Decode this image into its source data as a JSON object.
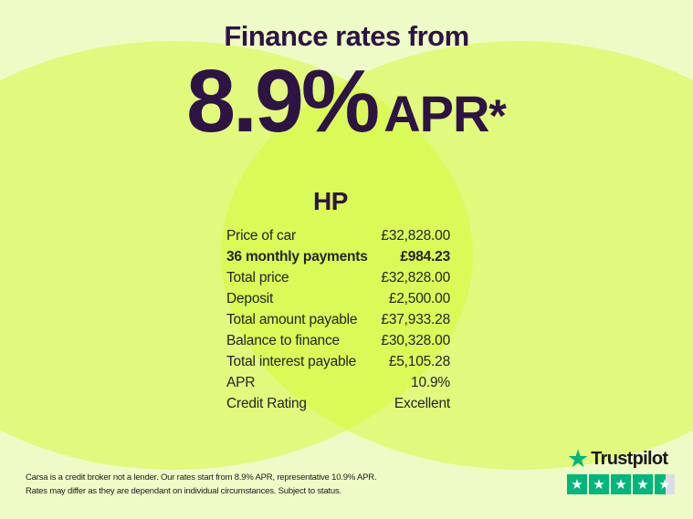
{
  "colors": {
    "background_pale": "#eefbc6",
    "circle_overlay": "rgba(212,249,52,0.5)",
    "heading_purple": "#2d1445",
    "table_text": "#232420",
    "trustpilot_green": "#00b67a",
    "trustpilot_empty_gray": "#dcdce6"
  },
  "header": {
    "title": "Finance rates from",
    "rate_big": "8.9%",
    "apr_label": "APR",
    "asterisk": "*"
  },
  "finance": {
    "product_title": "HP",
    "rows": [
      {
        "label": "Price of car",
        "value": "£32,828.00"
      },
      {
        "label": "36 monthly payments",
        "value": "£984.23"
      },
      {
        "label": "Total price",
        "value": "£32,828.00"
      },
      {
        "label": "Deposit",
        "value": "£2,500.00"
      },
      {
        "label": "Total amount payable",
        "value": "£37,933.28"
      },
      {
        "label": "Balance to finance",
        "value": "£30,328.00"
      },
      {
        "label": "Total interest payable",
        "value": "£5,105.28"
      },
      {
        "label": "APR",
        "value": "10.9%"
      },
      {
        "label": "Credit Rating",
        "value": "Excellent"
      }
    ]
  },
  "disclaimer": {
    "line1": "Carsa is a credit broker not a lender. Our rates start from 8.9% APR, representative 10.9% APR.",
    "line2": "Rates may differ as they are dependant on individual circumstances. Subject to status."
  },
  "trustpilot": {
    "brand": "Trustpilot",
    "star_glyph": "★",
    "rating_boxes": 5,
    "full_stars": 4,
    "partial_fill_percent": 55
  }
}
